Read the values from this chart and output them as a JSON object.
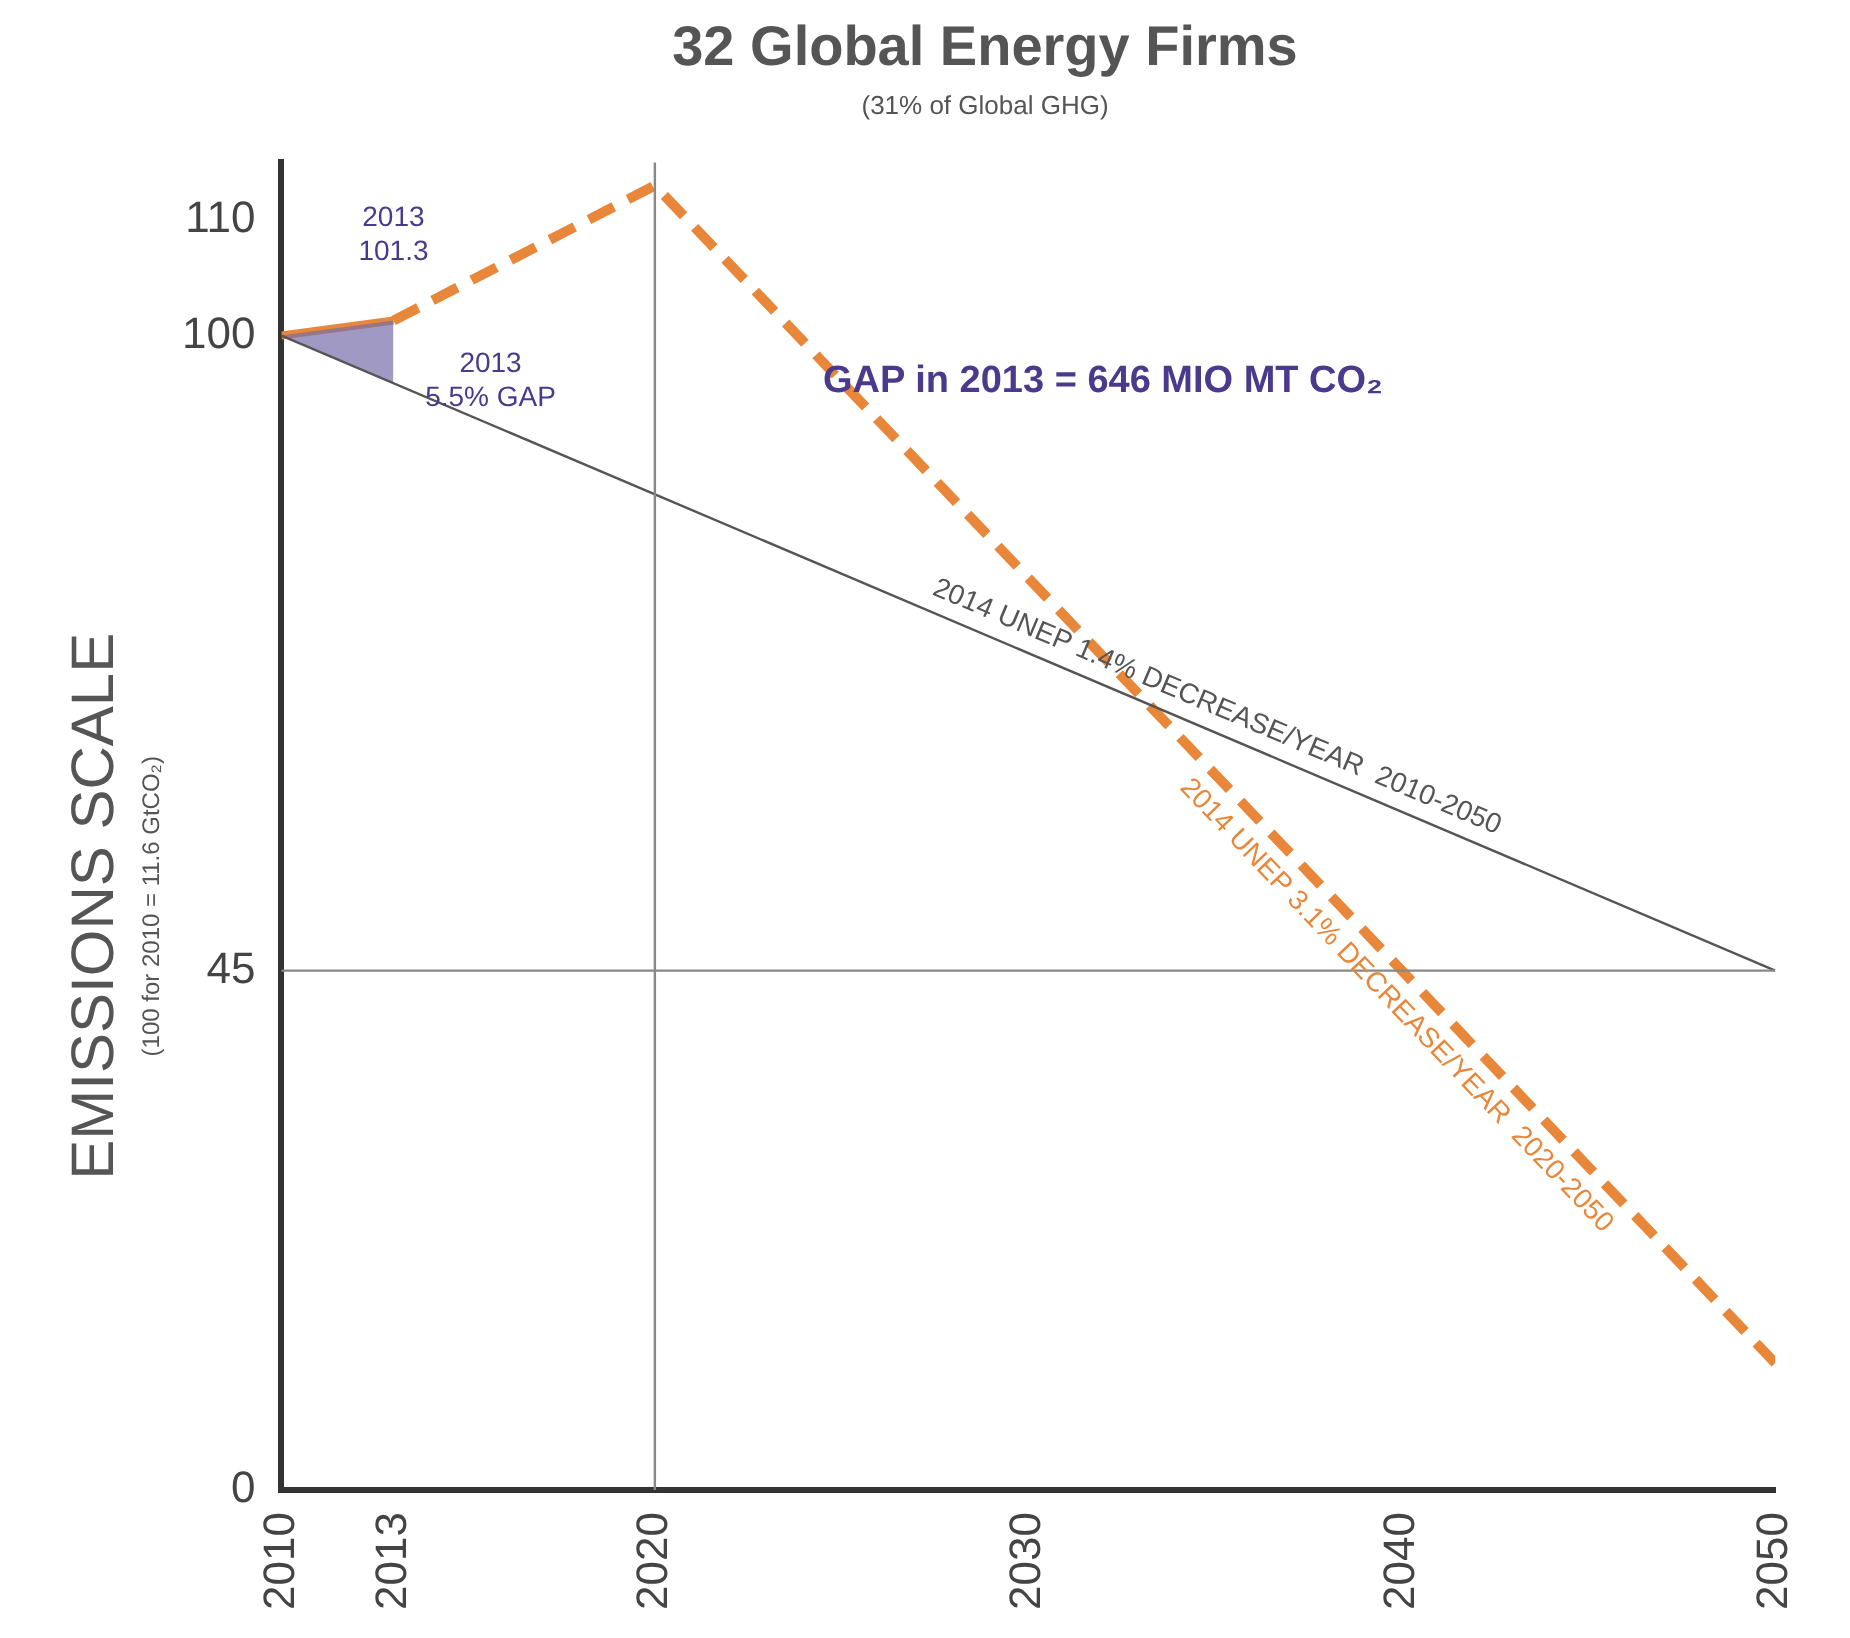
{
  "chart_data": {
    "type": "line",
    "title": "32 Global Energy Firms",
    "subtitle": "(31% of Global GHG)",
    "ylabel": "EMISSIONS SCALE",
    "annotations": [
      "(100 for 2010 = 11.6 GtCO₂)",
      "2013\n101.3",
      "2013\n5.5% GAP",
      "GAP in 2013 = 646 MIO MT CO₂",
      "2014 UNEP 1.4% DECREASE/YEAR  2010-2050",
      "2014 UNEP 3.1% DECREASE/YEAR  2020-2050"
    ],
    "xlim": [
      2010,
      2050
    ],
    "xticks": [
      2010,
      2013,
      2020,
      2030,
      2040,
      2050
    ],
    "ylim": [
      0,
      115
    ],
    "yticks": [
      0,
      45,
      100,
      110
    ],
    "ref_lines": [
      {
        "axis": "x",
        "value": 2020
      },
      {
        "axis": "y",
        "value": 45
      }
    ],
    "legend": false,
    "series": [
      {
        "color": "#555555",
        "x": [
          2010,
          2050
        ],
        "values": [
          100,
          45
        ],
        "line_style": "solid"
      },
      {
        "color": "#e8873a",
        "x": [
          2010,
          2013
        ],
        "values": [
          100,
          101.3
        ],
        "lower": [
          100,
          95.9
        ],
        "upper": [
          100,
          101.3
        ],
        "line_style": "solid"
      },
      {
        "color": "#e8873a",
        "x": [
          2013,
          2020,
          2050
        ],
        "values": [
          101.3,
          113,
          11
        ],
        "line_style": "dashed"
      }
    ]
  }
}
